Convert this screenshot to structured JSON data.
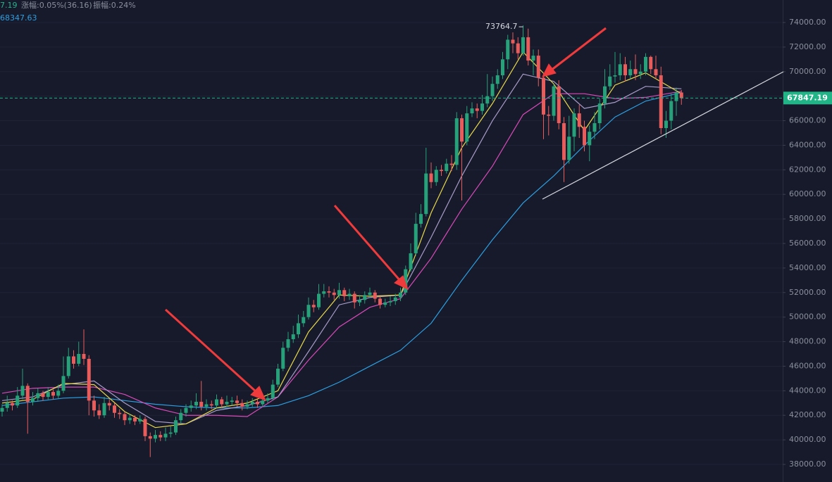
{
  "header": {
    "price_fragment": "7.19",
    "change": "涨幅:0.05%(36.16)",
    "amplitude": "振幅:0.24%",
    "ma_value": "68347.63"
  },
  "chart_data": {
    "type": "candlestick",
    "up_color": "#26a17a",
    "down_color": "#e85c5c",
    "ylim": [
      36567,
      75834
    ],
    "yticks": [
      {
        "value": 38000,
        "label": "38000.00"
      },
      {
        "value": 40000,
        "label": "40000.00"
      },
      {
        "value": 42000,
        "label": "42000.00"
      },
      {
        "value": 44000,
        "label": "44000.00"
      },
      {
        "value": 46000,
        "label": "46000.00"
      },
      {
        "value": 48000,
        "label": "48000.00"
      },
      {
        "value": 50000,
        "label": "50000.00"
      },
      {
        "value": 52000,
        "label": "52000.00"
      },
      {
        "value": 54000,
        "label": "54000.00"
      },
      {
        "value": 56000,
        "label": "56000.00"
      },
      {
        "value": 58000,
        "label": "58000.00"
      },
      {
        "value": 60000,
        "label": "60000.00"
      },
      {
        "value": 62000,
        "label": "62000.00"
      },
      {
        "value": 64000,
        "label": "64000.00"
      },
      {
        "value": 66000,
        "label": "66000.00"
      },
      {
        "value": 68000,
        "label": "68000.00"
      },
      {
        "value": 70000,
        "label": "70000.00"
      },
      {
        "value": 72000,
        "label": "72000.00"
      },
      {
        "value": 74000,
        "label": "74000.00"
      }
    ],
    "grid": true,
    "last_price": 67847.19,
    "last_price_color": "#20b486",
    "high_annotation_index": 102,
    "open": [
      42300,
      42600,
      43000,
      42800,
      43600,
      44400,
      43100,
      43400,
      43800,
      43500,
      43900,
      43600,
      44000,
      45200,
      46800,
      46200,
      47000,
      46600,
      43200,
      42400,
      42000,
      43000,
      42800,
      42200,
      42100,
      41600,
      41800,
      41500,
      41700,
      40300,
      40100,
      40400,
      40200,
      40500,
      40600,
      41600,
      42200,
      42600,
      42800,
      43100,
      42700,
      42900,
      42800,
      43300,
      42900,
      43100,
      43200,
      43000,
      42700,
      42900,
      43100,
      42900,
      43200,
      43400,
      44500,
      45800,
      47500,
      48200,
      48600,
      49500,
      50000,
      51000,
      50800,
      51900,
      52100,
      52000,
      51800,
      52200,
      51700,
      51900,
      51200,
      51400,
      51800,
      52000,
      51500,
      51000,
      51200,
      51300,
      51600,
      52000,
      53900,
      55200,
      57600,
      58400,
      61700,
      61000,
      62000,
      61900,
      62500,
      62400,
      66200,
      64300,
      66600,
      67000,
      66800,
      67400,
      68000,
      69000,
      69700,
      71000,
      72600,
      72300,
      71500,
      72800,
      70900,
      71300,
      69500,
      66500,
      66400,
      68800,
      65800,
      62800,
      64700,
      66600,
      65500,
      64000,
      65100,
      65800,
      67400,
      68800,
      69600,
      69700,
      70600,
      69700,
      70200,
      69800,
      70000,
      71200,
      70200,
      69700,
      65400,
      66000,
      67600,
      68300
    ],
    "high": [
      42900,
      43600,
      43200,
      44300,
      45800,
      44600,
      43900,
      44200,
      44000,
      44300,
      44100,
      44500,
      46800,
      47500,
      47300,
      48000,
      49000,
      46900,
      43600,
      42900,
      43500,
      43300,
      43000,
      42500,
      42300,
      42100,
      42000,
      42000,
      41900,
      40600,
      40800,
      40700,
      41000,
      41100,
      41900,
      42500,
      42900,
      43200,
      43800,
      44800,
      43300,
      43200,
      43700,
      43500,
      43600,
      43500,
      43600,
      43300,
      43200,
      43400,
      43300,
      43600,
      43800,
      44900,
      46200,
      48000,
      48800,
      49300,
      50200,
      50500,
      51600,
      51400,
      52700,
      52700,
      52500,
      52300,
      52800,
      52400,
      52300,
      52100,
      51800,
      52100,
      52400,
      52200,
      51700,
      51500,
      51700,
      51900,
      52400,
      54200,
      56000,
      58500,
      59200,
      63800,
      62600,
      62300,
      62400,
      62900,
      63200,
      66700,
      66500,
      67200,
      67500,
      67400,
      68100,
      69800,
      69600,
      70200,
      71600,
      73000,
      73200,
      72800,
      73764.7,
      73500,
      71800,
      71800,
      69900,
      67200,
      69000,
      69300,
      66300,
      66400,
      67000,
      67300,
      66000,
      65600,
      66700,
      67800,
      70200,
      70600,
      71600,
      71500,
      71200,
      70900,
      71400,
      70600,
      71500,
      71300,
      71300,
      70400,
      66800,
      68200,
      68700,
      68500
    ],
    "low": [
      41900,
      42300,
      42400,
      42600,
      43300,
      40500,
      42800,
      43100,
      43200,
      43300,
      43300,
      43400,
      43800,
      45000,
      45800,
      46000,
      46100,
      42000,
      41900,
      41700,
      41800,
      42400,
      41800,
      41700,
      41200,
      41300,
      41200,
      41300,
      39900,
      38600,
      39800,
      39900,
      39900,
      40200,
      40400,
      41300,
      41900,
      42300,
      42500,
      42400,
      42400,
      42500,
      42600,
      42600,
      42700,
      42800,
      42700,
      42400,
      42500,
      42700,
      42600,
      42700,
      43000,
      43200,
      44300,
      45600,
      47200,
      47900,
      48300,
      49200,
      49800,
      50400,
      50600,
      51600,
      51600,
      51400,
      51500,
      51300,
      51400,
      50700,
      50900,
      51100,
      51600,
      51200,
      50700,
      50800,
      50900,
      51000,
      51300,
      51800,
      53700,
      55000,
      57300,
      58200,
      60500,
      60700,
      61500,
      61700,
      61900,
      62000,
      59500,
      64000,
      66300,
      66200,
      66500,
      67100,
      67600,
      68600,
      69400,
      70200,
      71500,
      71000,
      71300,
      70500,
      69700,
      68800,
      64500,
      64800,
      66000,
      65300,
      61000,
      62500,
      63500,
      64600,
      63500,
      62700,
      64500,
      65300,
      67000,
      68500,
      69100,
      69300,
      69200,
      69400,
      69300,
      69400,
      69700,
      69800,
      69400,
      64900,
      64600,
      65300,
      66400,
      67300
    ],
    "close": [
      42600,
      43000,
      42800,
      43600,
      44400,
      43100,
      43400,
      43800,
      43500,
      43900,
      43600,
      44000,
      45200,
      46800,
      46200,
      47000,
      46600,
      43200,
      42400,
      42000,
      43000,
      42800,
      42200,
      42100,
      41600,
      41800,
      41500,
      41700,
      40300,
      40100,
      40400,
      40200,
      40500,
      40600,
      41600,
      42200,
      42600,
      42800,
      43100,
      42700,
      42900,
      42800,
      43300,
      42900,
      43100,
      43200,
      43000,
      42700,
      42900,
      43100,
      42900,
      43200,
      43400,
      44500,
      45800,
      47500,
      48200,
      48600,
      49500,
      50000,
      51000,
      50800,
      51900,
      52100,
      52000,
      51800,
      52200,
      51700,
      51900,
      51200,
      51400,
      51800,
      52000,
      51500,
      51000,
      51200,
      51300,
      51600,
      52000,
      53900,
      55200,
      57600,
      58400,
      61700,
      61000,
      62000,
      61900,
      62500,
      62400,
      66200,
      64300,
      66600,
      67000,
      66800,
      67400,
      68000,
      69000,
      69700,
      71000,
      72600,
      72300,
      71500,
      72800,
      70900,
      71300,
      69500,
      66500,
      66400,
      68800,
      65800,
      62800,
      64700,
      66600,
      65500,
      64000,
      65100,
      65800,
      67400,
      68800,
      69600,
      69700,
      70600,
      69700,
      70200,
      69800,
      70000,
      71200,
      70200,
      69700,
      65400,
      66000,
      67600,
      68300,
      67850
    ],
    "ma_lines": [
      {
        "color": "#2d9fe0",
        "x": [
          0,
          6,
          12,
          18,
          24,
          30,
          36,
          42,
          48,
          54,
          60,
          66,
          72,
          78,
          84,
          90,
          96,
          102,
          108,
          114,
          120,
          126,
          133
        ],
        "values": [
          42800,
          43100,
          43400,
          43500,
          43200,
          42900,
          42700,
          42600,
          42600,
          42800,
          43600,
          44700,
          46000,
          47300,
          49500,
          53000,
          56300,
          59300,
          61500,
          64000,
          66300,
          67600,
          68300
        ]
      },
      {
        "color": "#d94ab8",
        "x": [
          0,
          6,
          12,
          18,
          24,
          30,
          36,
          42,
          48,
          54,
          60,
          66,
          72,
          78,
          84,
          90,
          96,
          102,
          108,
          114,
          120,
          126,
          133
        ],
        "values": [
          43800,
          44200,
          44300,
          44300,
          43700,
          42600,
          42000,
          42000,
          41900,
          43500,
          46500,
          49200,
          50800,
          51500,
          54800,
          58800,
          62300,
          66500,
          68200,
          68200,
          67800,
          67900,
          68400
        ]
      },
      {
        "color": "#a89cc8",
        "x": [
          0,
          6,
          12,
          18,
          24,
          30,
          36,
          42,
          48,
          54,
          60,
          66,
          72,
          78,
          84,
          90,
          96,
          102,
          108,
          114,
          120,
          126,
          133
        ],
        "values": [
          43200,
          43500,
          44500,
          44800,
          43000,
          41500,
          41300,
          42400,
          42800,
          43500,
          47200,
          51000,
          51600,
          51800,
          56500,
          61500,
          66000,
          69800,
          69200,
          67000,
          67500,
          68800,
          68600
        ]
      },
      {
        "color": "#e8d84a",
        "x": [
          0,
          6,
          12,
          18,
          24,
          30,
          36,
          42,
          48,
          54,
          60,
          66,
          72,
          78,
          84,
          90,
          96,
          102,
          108,
          114,
          120,
          126,
          133
        ],
        "values": [
          43000,
          43300,
          44600,
          44500,
          42300,
          41000,
          41300,
          42600,
          43000,
          44000,
          48800,
          51800,
          51700,
          51800,
          58500,
          63800,
          67400,
          71600,
          69000,
          65200,
          68900,
          69900,
          68200
        ]
      }
    ]
  }
}
